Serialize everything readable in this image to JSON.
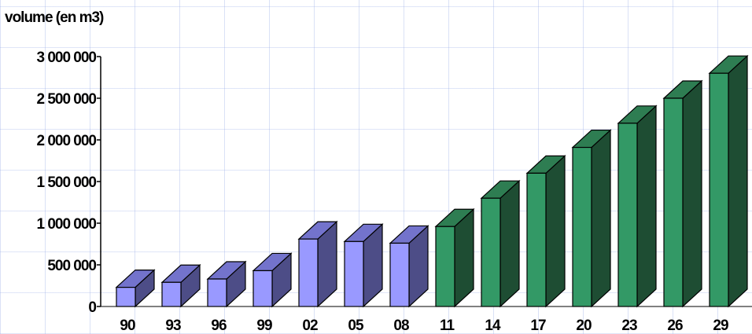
{
  "chart_data": {
    "type": "bar",
    "title": "",
    "xlabel": "",
    "ylabel": "volume (en m3)",
    "categories": [
      "90",
      "93",
      "96",
      "99",
      "02",
      "05",
      "08",
      "11",
      "14",
      "17",
      "20",
      "23",
      "26",
      "29"
    ],
    "values": [
      230000,
      290000,
      330000,
      430000,
      810000,
      780000,
      760000,
      960000,
      1300000,
      1600000,
      1910000,
      2200000,
      2500000,
      2800000
    ],
    "ylim": [
      0,
      3000000
    ],
    "yticks": [
      0,
      500000,
      1000000,
      1500000,
      2000000,
      2500000,
      3000000
    ],
    "ytick_labels": [
      "0",
      "500 000",
      "1 000 000",
      "1 500 000",
      "2 000 000",
      "2 500 000",
      "3 000 000"
    ],
    "grid": true,
    "legend": "none",
    "colors": {
      "historical_front": "#9999ff",
      "historical_side": "#4d4d87",
      "historical_top": "#7373cc",
      "projected_front": "#339966",
      "projected_side": "#1e4d33",
      "projected_top": "#2e7d52",
      "outline": "#000000"
    },
    "historical_count": 7
  }
}
